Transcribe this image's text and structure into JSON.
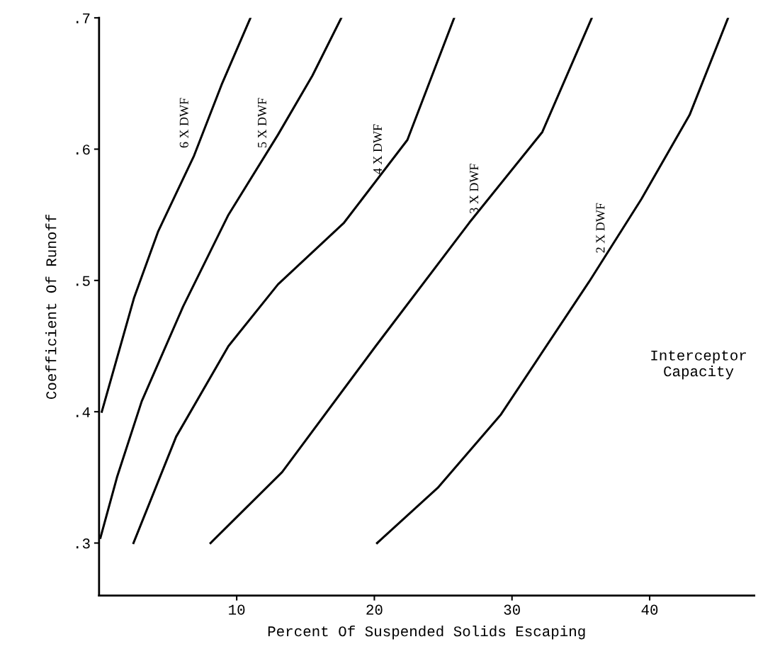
{
  "chart_data": {
    "type": "line",
    "xlabel": "Percent Of Suspended Solids Escaping",
    "ylabel": "Coefficient Of Runoff",
    "series": [
      {
        "name": "6 X DWF",
        "color": "#000000",
        "x": [
          0.2,
          2.55,
          4.3,
          6.9,
          8.9,
          11.0
        ],
        "values": [
          0.4,
          0.487,
          0.5375,
          0.595,
          0.649,
          0.7
        ]
      },
      {
        "name": "5 X DWF",
        "color": "#000000",
        "x": [
          0.1,
          1.3,
          3.1,
          6.1,
          9.4,
          13.0,
          15.5,
          17.6
        ],
        "values": [
          0.304,
          0.35,
          0.408,
          0.48,
          0.55,
          0.611,
          0.656,
          0.7
        ]
      },
      {
        "name": "4 X DWF",
        "color": "#000000",
        "x": [
          2.5,
          5.6,
          9.4,
          13.0,
          17.8,
          22.4,
          25.8
        ],
        "values": [
          0.3,
          0.381,
          0.45,
          0.497,
          0.544,
          0.607,
          0.7
        ]
      },
      {
        "name": "3 X DWF",
        "color": "#000000",
        "x": [
          8.1,
          13.3,
          20.1,
          26.9,
          32.2,
          35.8
        ],
        "values": [
          0.3,
          0.354,
          0.45,
          0.544,
          0.613,
          0.7
        ]
      },
      {
        "name": "2 X DWF",
        "color": "#000000",
        "x": [
          20.2,
          24.6,
          29.2,
          35.6,
          39.4,
          42.9,
          45.7
        ],
        "values": [
          0.3,
          0.342,
          0.398,
          0.499,
          0.562,
          0.626,
          0.7
        ]
      }
    ],
    "annotations": [
      "Interceptor\nCapacity"
    ],
    "xlim": [
      0,
      47.6
    ],
    "ylim": [
      0.26,
      0.7
    ],
    "xticks": [
      10,
      20,
      30,
      40
    ],
    "yticks": [
      {
        "value": 0.3,
        "label": ".3"
      },
      {
        "value": 0.4,
        "label": ".4"
      },
      {
        "value": 0.5,
        "label": ".5"
      },
      {
        "value": 0.6,
        "label": ".6"
      },
      {
        "value": 0.7,
        "label": ".7"
      }
    ],
    "grid": false,
    "legend": false,
    "marker": "none",
    "line_style": "solid"
  }
}
